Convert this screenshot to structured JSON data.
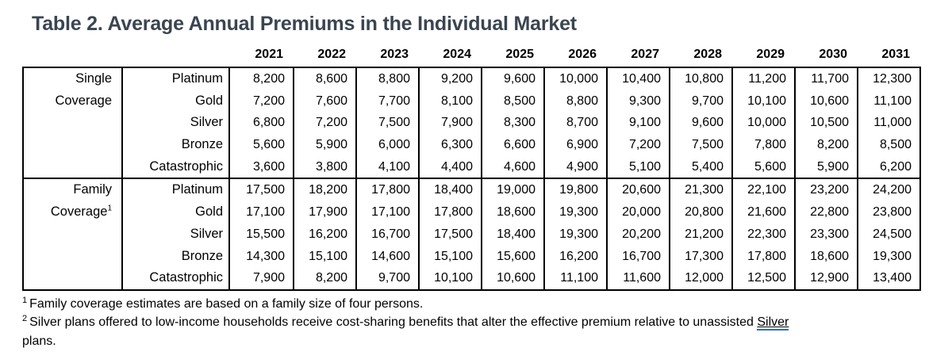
{
  "title": "Table 2. Average Annual Premiums in the Individual Market",
  "chart_data": {
    "type": "table",
    "title": "Table 2. Average Annual Premiums in the Individual Market",
    "columns": [
      "2021",
      "2022",
      "2023",
      "2024",
      "2025",
      "2026",
      "2027",
      "2028",
      "2029",
      "2030",
      "2031"
    ],
    "row_groups": [
      "Single Coverage",
      "Family Coverage"
    ],
    "rows": [
      "Platinum",
      "Gold",
      "Silver",
      "Bronze",
      "Catastrophic"
    ]
  },
  "table": {
    "years": [
      "2021",
      "2022",
      "2023",
      "2024",
      "2025",
      "2026",
      "2027",
      "2028",
      "2029",
      "2030",
      "2031"
    ],
    "groups": [
      {
        "label_lines": [
          "Single",
          "Coverage"
        ],
        "label_sup": "",
        "rows": [
          {
            "plan": "Platinum",
            "values": [
              "8,200",
              "8,600",
              "8,800",
              "9,200",
              "9,600",
              "10,000",
              "10,400",
              "10,800",
              "11,200",
              "11,700",
              "12,300"
            ]
          },
          {
            "plan": "Gold",
            "values": [
              "7,200",
              "7,600",
              "7,700",
              "8,100",
              "8,500",
              "8,800",
              "9,300",
              "9,700",
              "10,100",
              "10,600",
              "11,100"
            ]
          },
          {
            "plan": "Silver",
            "values": [
              "6,800",
              "7,200",
              "7,500",
              "7,900",
              "8,300",
              "8,700",
              "9,100",
              "9,600",
              "10,000",
              "10,500",
              "11,000"
            ]
          },
          {
            "plan": "Bronze",
            "values": [
              "5,600",
              "5,900",
              "6,000",
              "6,300",
              "6,600",
              "6,900",
              "7,200",
              "7,500",
              "7,800",
              "8,200",
              "8,500"
            ]
          },
          {
            "plan": "Catastrophic",
            "values": [
              "3,600",
              "3,800",
              "4,100",
              "4,400",
              "4,600",
              "4,900",
              "5,100",
              "5,400",
              "5,600",
              "5,900",
              "6,200"
            ]
          }
        ]
      },
      {
        "label_lines": [
          "Family",
          "Coverage"
        ],
        "label_sup": "1",
        "rows": [
          {
            "plan": "Platinum",
            "values": [
              "17,500",
              "18,200",
              "17,800",
              "18,400",
              "19,000",
              "19,800",
              "20,600",
              "21,300",
              "22,100",
              "23,200",
              "24,200"
            ]
          },
          {
            "plan": "Gold",
            "values": [
              "17,100",
              "17,900",
              "17,100",
              "17,800",
              "18,600",
              "19,300",
              "20,000",
              "20,800",
              "21,600",
              "22,800",
              "23,800"
            ]
          },
          {
            "plan": "Silver",
            "values": [
              "15,500",
              "16,200",
              "16,700",
              "17,500",
              "18,400",
              "19,300",
              "20,200",
              "21,200",
              "22,300",
              "23,300",
              "24,500"
            ]
          },
          {
            "plan": "Bronze",
            "values": [
              "14,300",
              "15,100",
              "14,600",
              "15,100",
              "15,600",
              "16,200",
              "16,700",
              "17,300",
              "17,800",
              "18,600",
              "19,300"
            ]
          },
          {
            "plan": "Catastrophic",
            "values": [
              "7,900",
              "8,200",
              "9,700",
              "10,100",
              "10,600",
              "11,100",
              "11,600",
              "12,000",
              "12,500",
              "12,900",
              "13,400"
            ]
          }
        ]
      }
    ]
  },
  "footnotes": {
    "fn1_sup": "1",
    "fn1_text": "Family coverage estimates are based on a family size of four persons.",
    "fn2_sup": "2",
    "fn2_text": "Silver plans offered to low-income households receive cost-sharing benefits that alter the effective premium relative to unassisted ",
    "fn2_link": "Silver",
    "fn3_text": "plans."
  },
  "colors": {
    "title": "#3a4550",
    "border": "#000000",
    "grammar_underline": "#2f6fc1"
  }
}
